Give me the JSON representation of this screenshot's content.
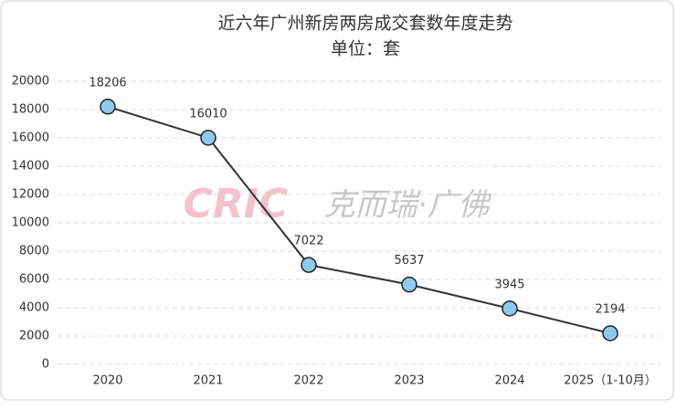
{
  "chart_data": {
    "type": "line",
    "title": "近六年广州新房两房成交套数年度走势",
    "subtitle": "单位：套",
    "watermark": [
      "CRIC",
      "克而瑞·广佛"
    ],
    "categories": [
      "2020",
      "2021",
      "2022",
      "2023",
      "2024",
      "2025（1-10月）"
    ],
    "values": [
      18206,
      16010,
      7022,
      5637,
      3945,
      2194
    ],
    "line_color": "#333333",
    "marker_color": "#8ecaf0",
    "ylim": [
      0,
      20000
    ],
    "yticks": [
      0,
      2000,
      4000,
      6000,
      8000,
      10000,
      12000,
      14000,
      16000,
      18000,
      20000
    ],
    "grid": true
  }
}
